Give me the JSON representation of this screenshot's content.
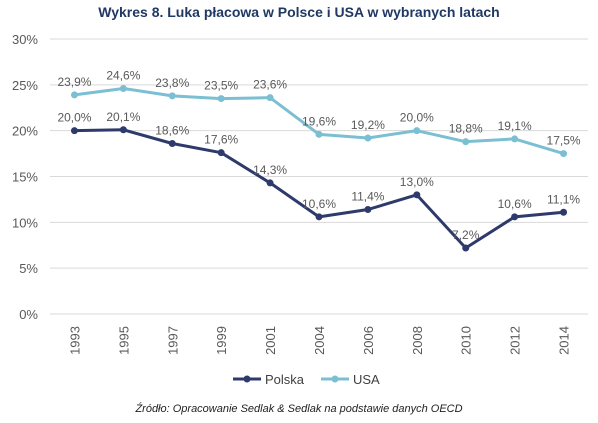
{
  "title": "Wykres 8. Luka płacowa w Polsce i USA w wybranych latach",
  "source": "Źródło: Opracowanie Sedlak & Sedlak na podstawie danych OECD",
  "chart_data": {
    "type": "line",
    "title": "Wykres 8. Luka płacowa w Polsce i USA w wybranych latach",
    "x": [
      "1993",
      "1995",
      "1997",
      "1999",
      "2001",
      "2004",
      "2006",
      "2008",
      "2010",
      "2012",
      "2014"
    ],
    "ylim": [
      0,
      30
    ],
    "yticks": [
      0,
      5,
      10,
      15,
      20,
      25,
      30
    ],
    "ytick_labels": [
      "0%",
      "5%",
      "10%",
      "15%",
      "20%",
      "25%",
      "30%"
    ],
    "grid": true,
    "legend_position": "bottom",
    "series": [
      {
        "name": "Polska",
        "color": "#2e3a6c",
        "values": [
          20.0,
          20.1,
          18.6,
          17.6,
          14.3,
          10.6,
          11.4,
          13.0,
          7.2,
          10.6,
          11.1
        ],
        "labels": [
          "20,0%",
          "20,1%",
          "18,6%",
          "17,6%",
          "14,3%",
          "10,6%",
          "11,4%",
          "13,0%",
          "7,2%",
          "10,6%",
          "11,1%"
        ]
      },
      {
        "name": "USA",
        "color": "#7bbfd3",
        "values": [
          23.9,
          24.6,
          23.8,
          23.5,
          23.6,
          19.6,
          19.2,
          20.0,
          18.8,
          19.1,
          17.5
        ],
        "labels": [
          "23,9%",
          "24,6%",
          "23,8%",
          "23,5%",
          "23,6%",
          "19,6%",
          "19,2%",
          "20,0%",
          "18,8%",
          "19,1%",
          "17,5%"
        ]
      }
    ]
  }
}
